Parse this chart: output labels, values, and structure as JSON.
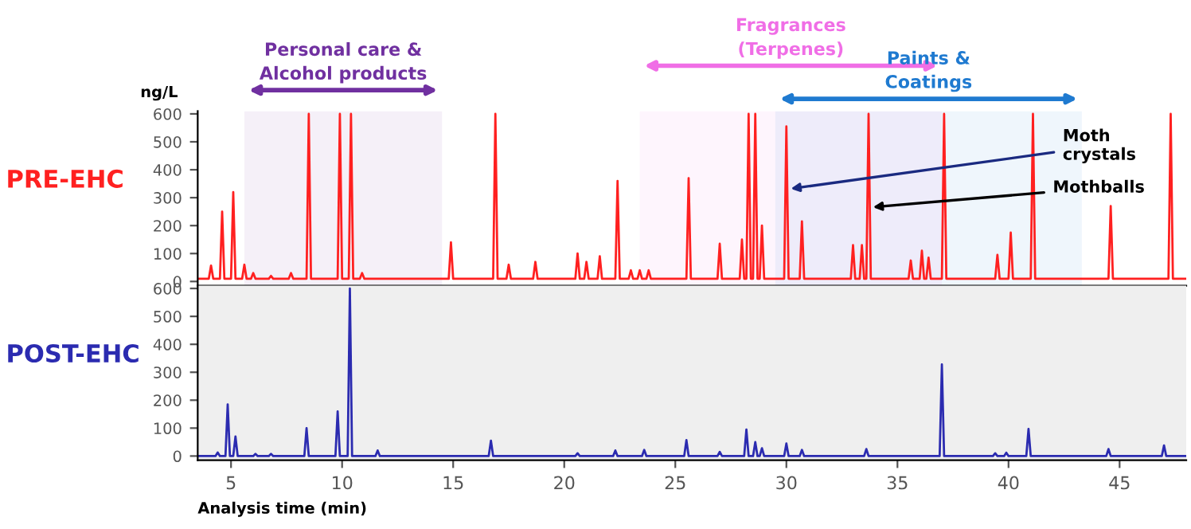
{
  "chart_data": [
    {
      "type": "line",
      "title": "PRE-EHC",
      "ylabel": "ng/L",
      "xlim": [
        3.5,
        48
      ],
      "ylim": [
        -15,
        610
      ],
      "yticks": [
        0,
        100,
        200,
        300,
        400,
        500,
        600
      ],
      "tick_labels": "y",
      "grid": false,
      "legend": false,
      "series": [
        {
          "color": "#ff2020",
          "x": [
            3.5,
            4.0,
            4.1,
            4.2,
            4.5,
            4.6,
            4.7,
            5.0,
            5.1,
            5.2,
            5.5,
            5.6,
            5.7,
            5.9,
            6.0,
            6.1,
            6.7,
            6.8,
            6.9,
            7.6,
            7.7,
            7.8,
            8.4,
            8.5,
            8.6,
            9.8,
            9.9,
            10.0,
            10.3,
            10.4,
            10.5,
            10.8,
            10.9,
            11.0,
            14.8,
            14.9,
            15.0,
            16.8,
            16.9,
            17.0,
            17.4,
            17.5,
            17.6,
            18.6,
            18.7,
            18.8,
            20.5,
            20.6,
            20.7,
            20.9,
            21.0,
            21.1,
            21.5,
            21.6,
            21.7,
            22.3,
            22.4,
            22.5,
            22.9,
            23.0,
            23.1,
            23.3,
            23.4,
            23.5,
            23.7,
            23.8,
            23.9,
            25.5,
            25.6,
            25.7,
            26.9,
            27.0,
            27.1,
            27.9,
            28.0,
            28.1,
            28.2,
            28.3,
            28.4,
            28.5,
            28.6,
            28.7,
            28.8,
            28.9,
            29.0,
            29.9,
            30.0,
            30.1,
            30.6,
            30.7,
            30.8,
            32.9,
            33.0,
            33.1,
            33.3,
            33.4,
            33.5,
            33.6,
            33.7,
            33.8,
            35.5,
            35.6,
            35.7,
            36.0,
            36.1,
            36.2,
            36.3,
            36.4,
            36.5,
            37.0,
            37.1,
            37.2,
            39.4,
            39.5,
            39.6,
            40.0,
            40.1,
            40.2,
            41.0,
            41.1,
            41.2,
            44.5,
            44.6,
            44.7,
            47.2,
            47.3,
            47.4,
            48.0
          ],
          "values": [
            10,
            10,
            57,
            10,
            10,
            250,
            10,
            10,
            320,
            10,
            10,
            60,
            10,
            10,
            30,
            10,
            10,
            20,
            10,
            10,
            30,
            10,
            10,
            600,
            10,
            10,
            600,
            10,
            10,
            600,
            10,
            10,
            30,
            10,
            10,
            140,
            10,
            10,
            600,
            10,
            10,
            60,
            10,
            10,
            70,
            10,
            10,
            100,
            10,
            10,
            70,
            10,
            10,
            90,
            10,
            10,
            360,
            10,
            10,
            40,
            10,
            10,
            40,
            10,
            10,
            40,
            10,
            10,
            370,
            10,
            10,
            135,
            10,
            10,
            150,
            10,
            10,
            600,
            10,
            10,
            600,
            10,
            10,
            200,
            10,
            10,
            555,
            10,
            10,
            215,
            10,
            10,
            130,
            10,
            10,
            130,
            10,
            10,
            600,
            10,
            10,
            75,
            10,
            10,
            110,
            10,
            10,
            85,
            10,
            10,
            600,
            10,
            10,
            95,
            10,
            10,
            175,
            10,
            10,
            600,
            10,
            10,
            270,
            10,
            10,
            600,
            10,
            10
          ]
        }
      ],
      "bands": [
        {
          "axis": "x",
          "from": 5.6,
          "to": 14.5,
          "label": "Personal care &\nAlcohol products",
          "color": "#7030a0"
        },
        {
          "axis": "x",
          "from": 23.4,
          "to": 37.0,
          "label": "Fragrances\n(Terpenes)",
          "color": "#f06ee6"
        },
        {
          "axis": "x",
          "from": 29.5,
          "to": 43.3,
          "label": "Paints &\nCoatings",
          "color": "#1f7ad0"
        }
      ],
      "annotations": [
        {
          "text": "Moth\ncrystals",
          "x": 30.0,
          "y": 330
        },
        {
          "text": "Mothballs",
          "x": 33.7,
          "y": 265
        }
      ]
    },
    {
      "type": "line",
      "title": "POST-EHC",
      "xlabel": "Analysis time (min)",
      "xlim": [
        3.5,
        48
      ],
      "xticks": [
        5,
        10,
        15,
        20,
        25,
        30,
        35,
        40,
        45
      ],
      "ylim": [
        -15,
        610
      ],
      "yticks": [
        0,
        100,
        200,
        300,
        400,
        500,
        600
      ],
      "grid": false,
      "legend": false,
      "series": [
        {
          "color": "#2b2bb0",
          "x": [
            3.5,
            4.3,
            4.4,
            4.5,
            4.75,
            4.85,
            4.95,
            5.1,
            5.2,
            5.3,
            6.0,
            6.1,
            6.2,
            6.7,
            6.8,
            6.9,
            8.3,
            8.4,
            8.5,
            9.7,
            9.8,
            9.9,
            10.25,
            10.35,
            10.45,
            11.5,
            11.6,
            11.7,
            16.6,
            16.7,
            16.8,
            20.5,
            20.6,
            20.7,
            22.2,
            22.3,
            22.4,
            23.5,
            23.6,
            23.7,
            25.4,
            25.5,
            25.6,
            26.9,
            27.0,
            27.1,
            28.1,
            28.2,
            28.3,
            28.5,
            28.6,
            28.7,
            28.8,
            28.9,
            29.0,
            29.9,
            30.0,
            30.1,
            30.6,
            30.7,
            30.8,
            33.5,
            33.6,
            33.7,
            36.9,
            37.0,
            37.1,
            39.3,
            39.4,
            39.5,
            39.8,
            39.9,
            40.0,
            40.8,
            40.9,
            41.0,
            44.4,
            44.5,
            44.6,
            46.9,
            47.0,
            47.1,
            48.0
          ],
          "values": [
            0,
            0,
            13,
            0,
            0,
            185,
            0,
            0,
            70,
            0,
            0,
            8,
            0,
            0,
            8,
            0,
            0,
            100,
            0,
            0,
            160,
            0,
            0,
            600,
            0,
            0,
            20,
            0,
            0,
            55,
            0,
            0,
            10,
            0,
            0,
            20,
            0,
            0,
            22,
            0,
            0,
            57,
            0,
            0,
            15,
            0,
            0,
            95,
            0,
            0,
            50,
            0,
            0,
            28,
            0,
            0,
            45,
            0,
            0,
            22,
            0,
            0,
            25,
            0,
            0,
            328,
            0,
            0,
            10,
            0,
            0,
            12,
            0,
            0,
            97,
            0,
            0,
            25,
            0,
            0,
            38,
            0,
            0
          ]
        }
      ]
    }
  ]
}
